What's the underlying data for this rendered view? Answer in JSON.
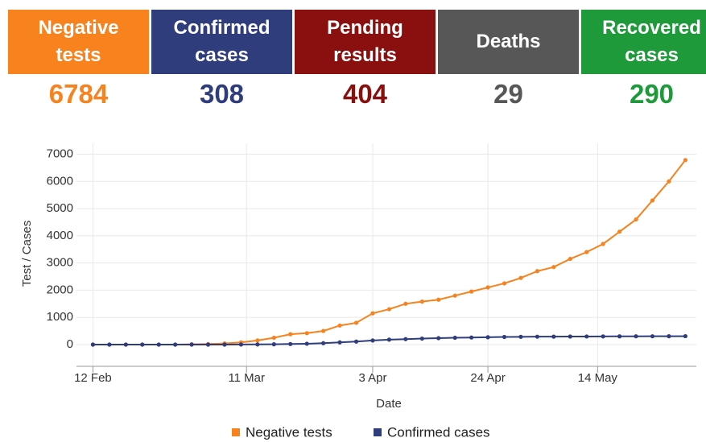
{
  "cards": [
    {
      "label": "Negative tests",
      "value": "6784",
      "color": "#f7821e"
    },
    {
      "label": "Confirmed cases",
      "value": "308",
      "color": "#2f3d7c"
    },
    {
      "label": "Pending results",
      "value": "404",
      "color": "#8a0f0f"
    },
    {
      "label": "Deaths",
      "value": "29",
      "color": "#575757"
    },
    {
      "label": "Recovered cases",
      "value": "290",
      "color": "#1f9a3b"
    }
  ],
  "chart_data": {
    "type": "line",
    "x": [
      "12 Feb",
      "15 Feb",
      "18 Feb",
      "21 Feb",
      "24 Feb",
      "27 Feb",
      "1 Mar",
      "4 Mar",
      "7 Mar",
      "10 Mar",
      "13 Mar",
      "16 Mar",
      "19 Mar",
      "22 Mar",
      "25 Mar",
      "28 Mar",
      "31 Mar",
      "3 Apr",
      "6 Apr",
      "9 Apr",
      "12 Apr",
      "15 Apr",
      "18 Apr",
      "21 Apr",
      "24 Apr",
      "27 Apr",
      "30 Apr",
      "3 May",
      "6 May",
      "9 May",
      "12 May",
      "15 May",
      "18 May",
      "21 May",
      "24 May",
      "27 May",
      "30 May"
    ],
    "series": [
      {
        "name": "Negative tests",
        "color": "#f7821e",
        "values": [
          0,
          0,
          0,
          0,
          0,
          0,
          10,
          20,
          40,
          80,
          150,
          250,
          380,
          420,
          500,
          700,
          800,
          1150,
          1300,
          1500,
          1580,
          1650,
          1800,
          1950,
          2100,
          2250,
          2450,
          2700,
          2850,
          3150,
          3400,
          3700,
          4150,
          4600,
          5300,
          6000,
          6784
        ]
      },
      {
        "name": "Confirmed cases",
        "color": "#2f3d7c",
        "values": [
          0,
          0,
          0,
          0,
          0,
          0,
          0,
          0,
          0,
          2,
          5,
          10,
          20,
          30,
          50,
          80,
          110,
          150,
          180,
          200,
          220,
          235,
          250,
          260,
          270,
          280,
          285,
          290,
          292,
          295,
          297,
          300,
          302,
          304,
          305,
          307,
          308
        ]
      }
    ],
    "xlim": [
      "9 Feb",
      "1 Jun"
    ],
    "xticks": [
      "12 Feb",
      "11 Mar",
      "3 Apr",
      "24 Apr",
      "14 May"
    ],
    "ylim": [
      -800,
      7400
    ],
    "yticks": [
      0,
      1000,
      2000,
      3000,
      4000,
      5000,
      6000,
      7000
    ],
    "xlabel": "Date",
    "ylabel": "Test / Cases",
    "grid": true,
    "legend": "bottom"
  }
}
